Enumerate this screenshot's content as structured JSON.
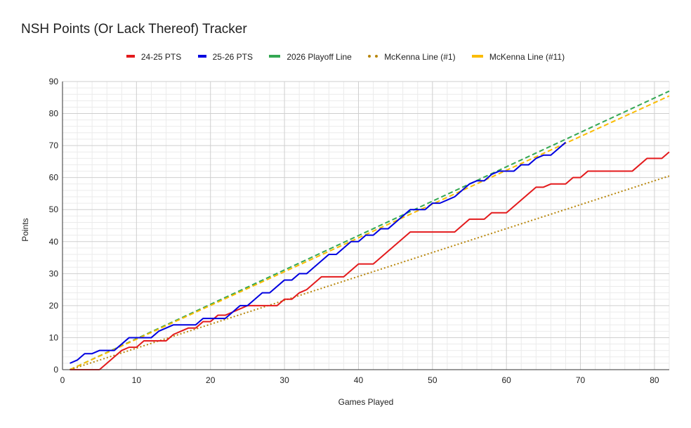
{
  "chart_data": {
    "type": "line",
    "title": "NSH Points (Or Lack Thereof) Tracker",
    "xlabel": "Games Played",
    "ylabel": "Points",
    "xlim": [
      0,
      82
    ],
    "ylim": [
      0,
      90
    ],
    "x_ticks": [
      0,
      10,
      20,
      30,
      40,
      50,
      60,
      70,
      80
    ],
    "y_ticks": [
      0,
      10,
      20,
      30,
      40,
      50,
      60,
      70,
      80,
      90
    ],
    "grid": true,
    "legend_position": "top",
    "series": [
      {
        "name": "24-25 PTS",
        "color": "#e31a1c",
        "style": "solid",
        "points": [
          [
            1,
            0
          ],
          [
            5,
            0
          ],
          [
            8,
            6
          ],
          [
            9,
            7
          ],
          [
            10,
            7
          ],
          [
            11,
            9
          ],
          [
            14,
            9
          ],
          [
            15,
            11
          ],
          [
            17,
            13
          ],
          [
            18,
            13
          ],
          [
            19,
            15
          ],
          [
            20,
            15
          ],
          [
            21,
            17
          ],
          [
            22,
            17
          ],
          [
            23,
            18
          ],
          [
            24,
            19
          ],
          [
            25,
            20
          ],
          [
            29,
            20
          ],
          [
            30,
            22
          ],
          [
            31,
            22
          ],
          [
            32,
            24
          ],
          [
            33,
            25
          ],
          [
            35,
            29
          ],
          [
            38,
            29
          ],
          [
            40,
            33
          ],
          [
            42,
            33
          ],
          [
            47,
            43
          ],
          [
            53,
            43
          ],
          [
            55,
            47
          ],
          [
            57,
            47
          ],
          [
            58,
            49
          ],
          [
            60,
            49
          ],
          [
            64,
            57
          ],
          [
            65,
            57
          ],
          [
            66,
            58
          ],
          [
            68,
            58
          ],
          [
            69,
            60
          ],
          [
            70,
            60
          ],
          [
            71,
            62
          ],
          [
            77,
            62
          ],
          [
            79,
            66
          ],
          [
            81,
            66
          ],
          [
            82,
            68
          ]
        ]
      },
      {
        "name": "25-26 PTS",
        "color": "#0000e0",
        "style": "solid",
        "points": [
          [
            1,
            2
          ],
          [
            2,
            3
          ],
          [
            3,
            5
          ],
          [
            4,
            5
          ],
          [
            5,
            6
          ],
          [
            7,
            6
          ],
          [
            8,
            8
          ],
          [
            9,
            10
          ],
          [
            12,
            10
          ],
          [
            13,
            12
          ],
          [
            15,
            14
          ],
          [
            18,
            14
          ],
          [
            19,
            16
          ],
          [
            20,
            16
          ],
          [
            22,
            16
          ],
          [
            23,
            18
          ],
          [
            24,
            20
          ],
          [
            25,
            20
          ],
          [
            27,
            24
          ],
          [
            28,
            24
          ],
          [
            30,
            28
          ],
          [
            31,
            28
          ],
          [
            32,
            30
          ],
          [
            33,
            30
          ],
          [
            36,
            36
          ],
          [
            37,
            36
          ],
          [
            39,
            40
          ],
          [
            40,
            40
          ],
          [
            41,
            42
          ],
          [
            42,
            42
          ],
          [
            43,
            44
          ],
          [
            44,
            44
          ],
          [
            46,
            48
          ],
          [
            47,
            50
          ],
          [
            48,
            50
          ],
          [
            49,
            50
          ],
          [
            50,
            52
          ],
          [
            51,
            52
          ],
          [
            53,
            54
          ],
          [
            55,
            58
          ],
          [
            56,
            59
          ],
          [
            57,
            59
          ],
          [
            58,
            61
          ],
          [
            59,
            62
          ],
          [
            60,
            62
          ],
          [
            61,
            62
          ],
          [
            62,
            64
          ],
          [
            63,
            64
          ],
          [
            64,
            66
          ],
          [
            65,
            67
          ],
          [
            66,
            67
          ],
          [
            68,
            71
          ]
        ]
      },
      {
        "name": "2026 Playoff Line",
        "color": "#34a853",
        "style": "dashed",
        "points": [
          [
            1,
            0
          ],
          [
            82,
            87
          ]
        ]
      },
      {
        "name": "McKenna Line (#1)",
        "color": "#b8860b",
        "style": "dotted",
        "points": [
          [
            1,
            0
          ],
          [
            82,
            60.5
          ]
        ]
      },
      {
        "name": "McKenna Line (#11)",
        "color": "#fbbc04",
        "style": "dashed",
        "points": [
          [
            1,
            0
          ],
          [
            82,
            85.5
          ]
        ]
      }
    ]
  }
}
